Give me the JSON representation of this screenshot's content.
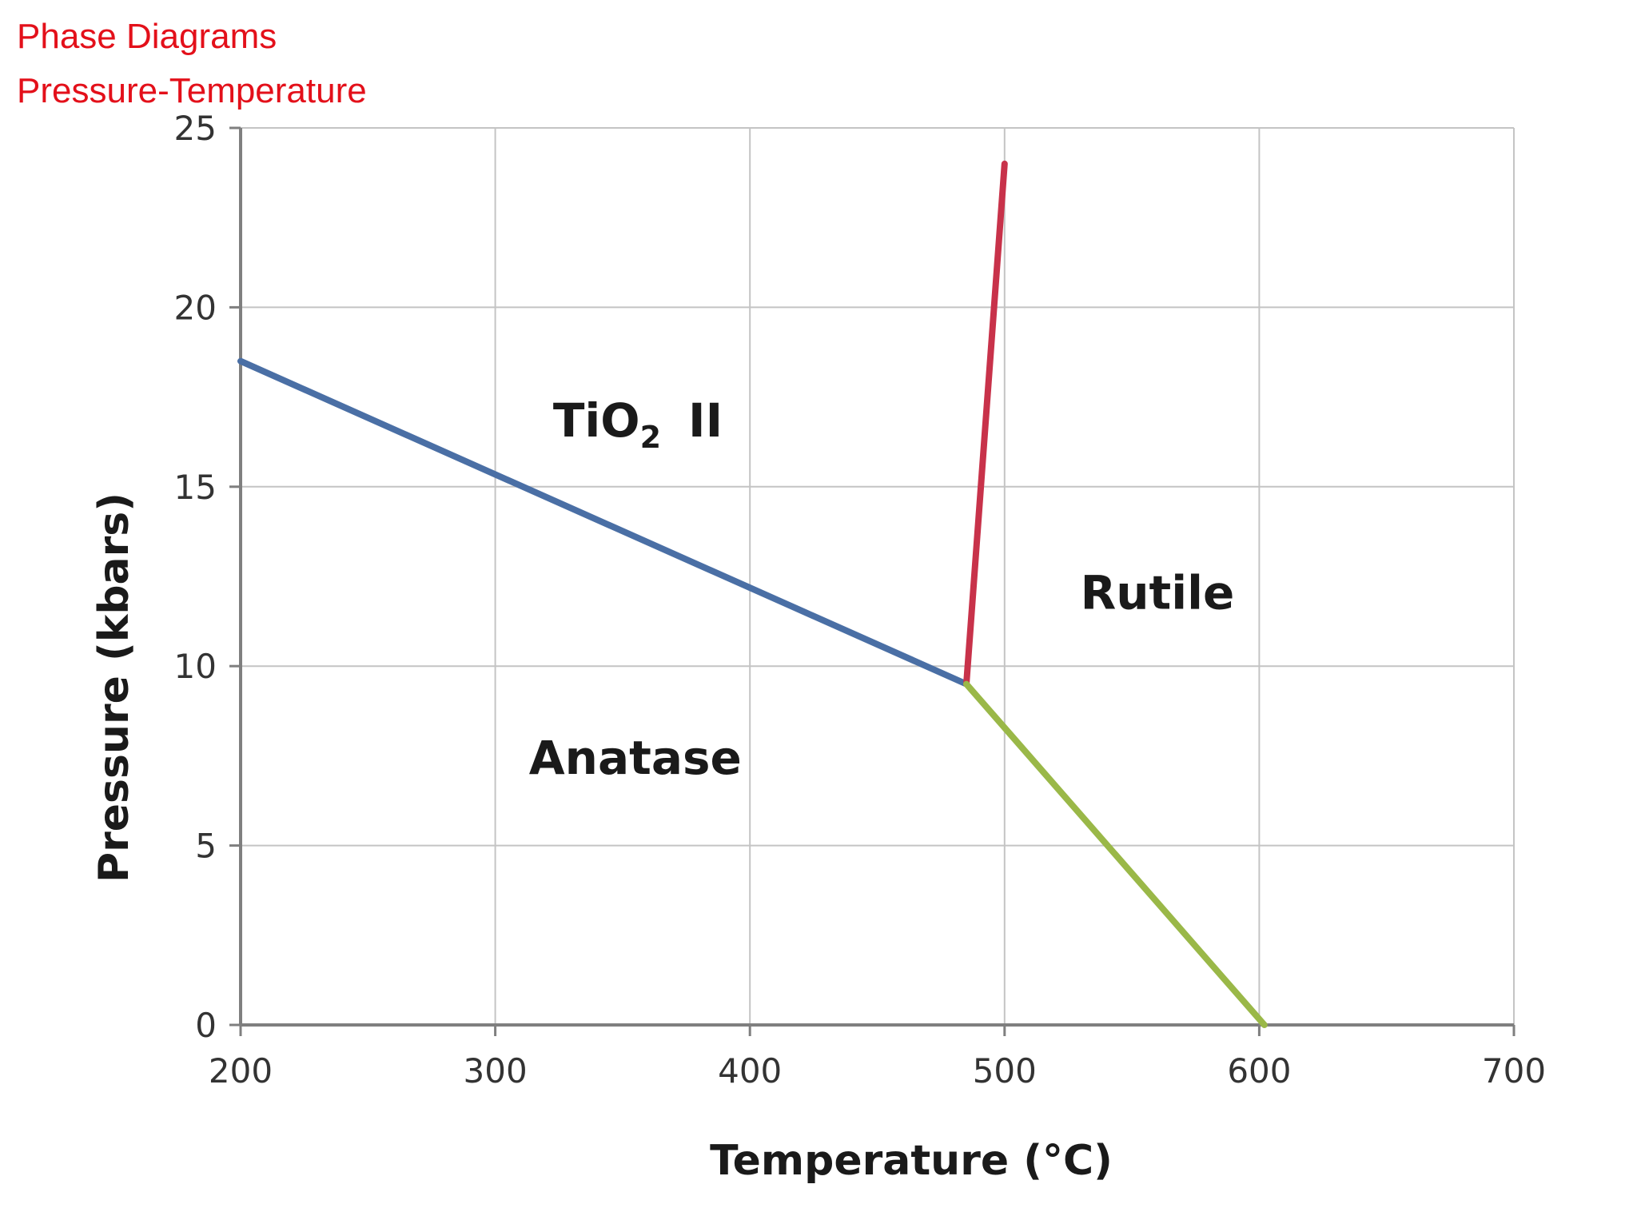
{
  "header": {
    "line1": "Phase Diagrams",
    "line2": "Pressure-Temperature"
  },
  "chart_data": {
    "type": "line",
    "xlabel": "Temperature (°C)",
    "ylabel": "Pressure (kbars)",
    "xlim": [
      200,
      700
    ],
    "ylim": [
      0,
      25
    ],
    "xticks": [
      200,
      300,
      400,
      500,
      600,
      700
    ],
    "yticks": [
      0,
      5,
      10,
      15,
      20,
      25
    ],
    "grid": true,
    "series": [
      {
        "color": "#4a6fa5",
        "points": [
          [
            200,
            18.5
          ],
          [
            485,
            9.5
          ]
        ]
      },
      {
        "color": "#c8324a",
        "points": [
          [
            485,
            9.5
          ],
          [
            500,
            24
          ]
        ]
      },
      {
        "color": "#9ab848",
        "points": [
          [
            485,
            9.5
          ],
          [
            602,
            0
          ]
        ]
      }
    ],
    "region_labels": [
      {
        "text": "TiO",
        "sub": "2",
        "suffix": "II",
        "x": 356,
        "y": 16.4
      },
      {
        "text": "Rutile",
        "x": 560,
        "y": 11.6
      },
      {
        "text": "Anatase",
        "x": 355,
        "y": 7.0
      }
    ]
  }
}
